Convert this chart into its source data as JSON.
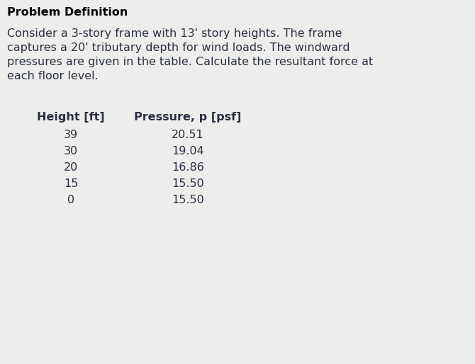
{
  "title": "Problem Definition",
  "paragraph_lines": [
    "Consider a 3-story frame with 13' story heights. The frame",
    "captures a 20' tributary depth for wind loads. The windward",
    "pressures are given in the table. Calculate the resultant force at",
    "each floor level."
  ],
  "col1_header": "Height [ft]",
  "col2_header": "Pressure, p [psf]",
  "heights": [
    "39",
    "30",
    "20",
    "15",
    "0"
  ],
  "pressures": [
    "20.51",
    "19.04",
    "16.86",
    "15.50",
    "15.50"
  ],
  "background_color": "#ededec",
  "title_fontsize": 11.5,
  "body_fontsize": 11.5,
  "table_header_fontsize": 11.5,
  "table_data_fontsize": 11.5,
  "text_color": "#2a3040",
  "title_color": "#000000",
  "fig_width": 6.7,
  "fig_height": 5.14,
  "dpi": 100
}
